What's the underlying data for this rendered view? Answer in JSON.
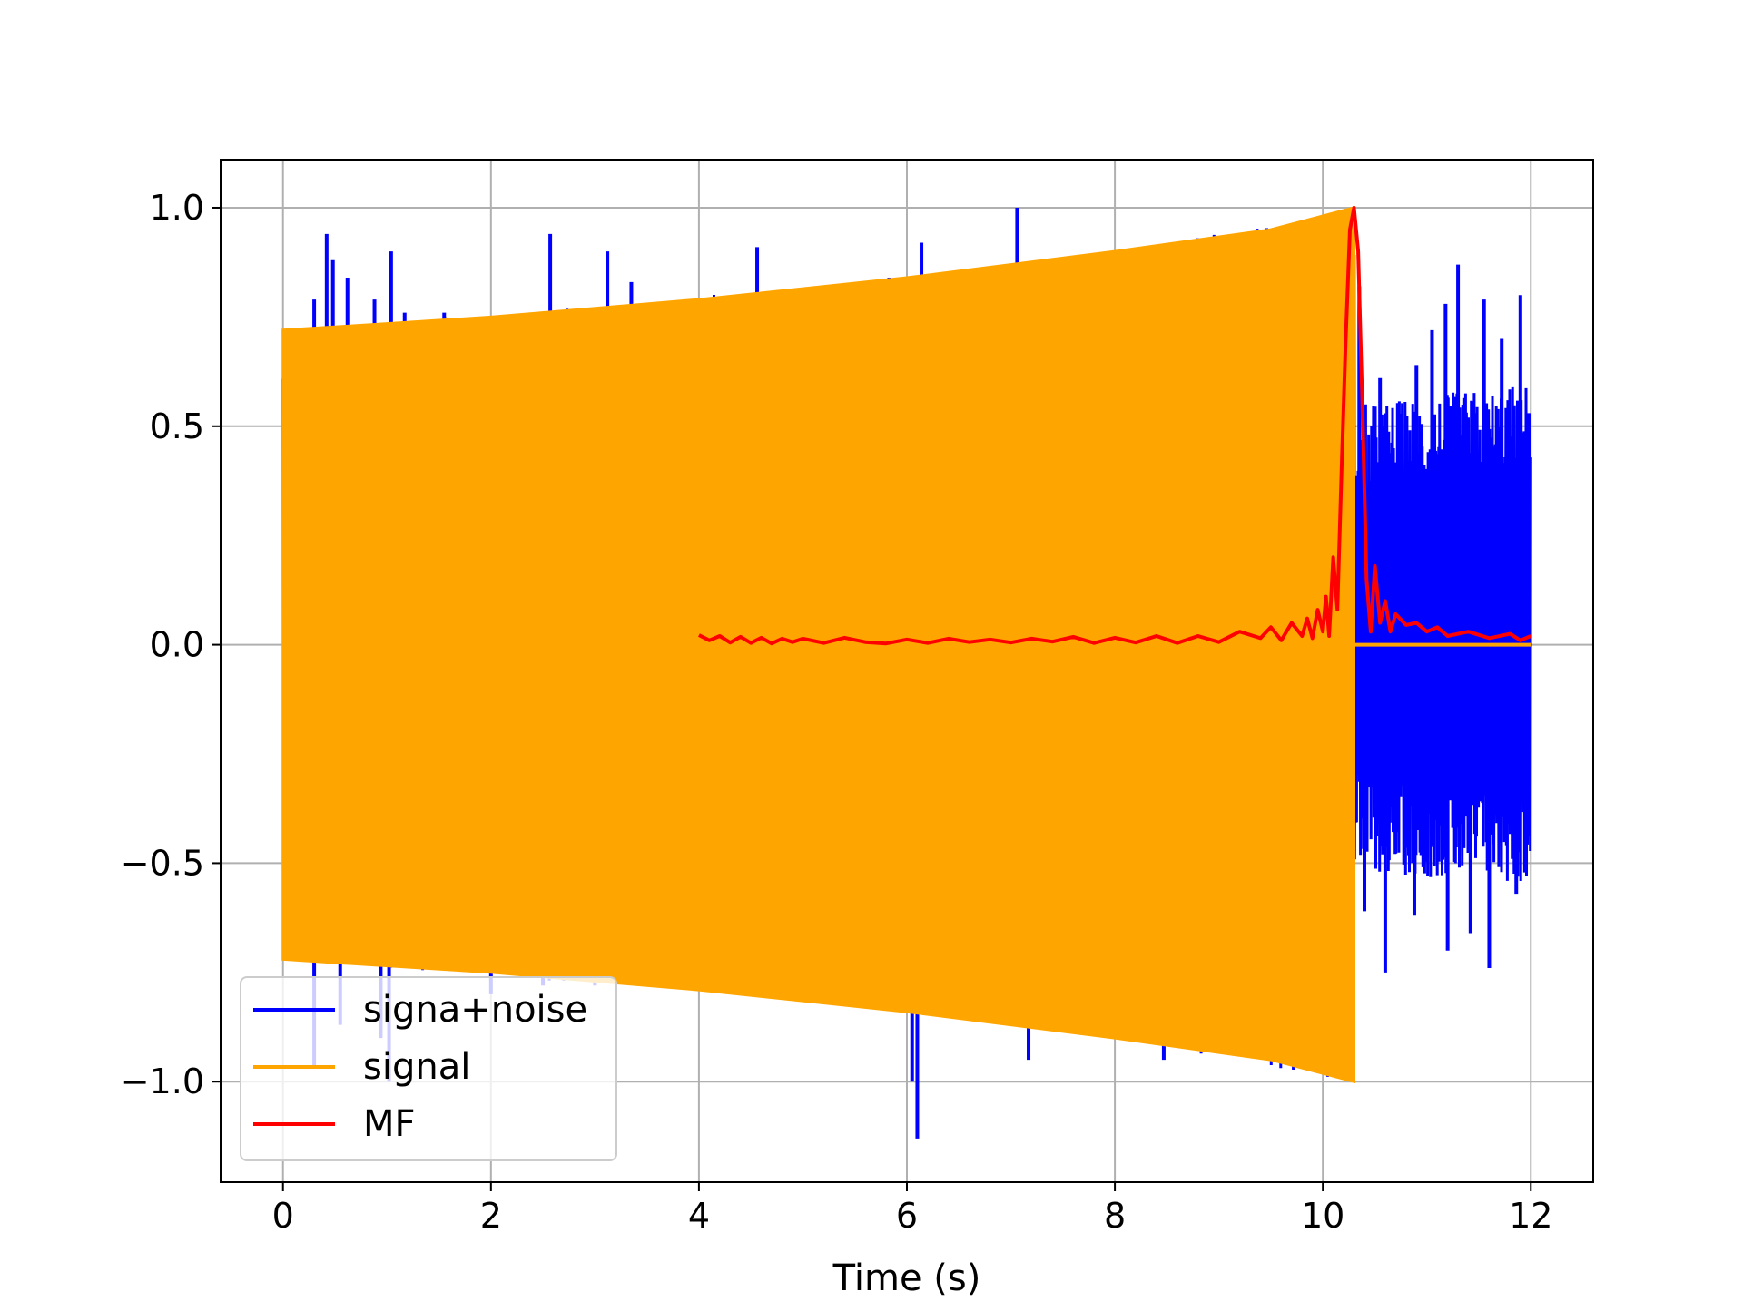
{
  "chart_data": {
    "type": "line",
    "title": "",
    "xlabel": "Time (s)",
    "ylabel": "",
    "xlim": [
      -0.6,
      12.6
    ],
    "ylim": [
      -1.23,
      1.11
    ],
    "grid": true,
    "legend_position": "lower-left",
    "x_ticks": [
      {
        "value": 0,
        "label": "0"
      },
      {
        "value": 2,
        "label": "2"
      },
      {
        "value": 4,
        "label": "4"
      },
      {
        "value": 6,
        "label": "6"
      },
      {
        "value": 8,
        "label": "8"
      },
      {
        "value": 10,
        "label": "10"
      },
      {
        "value": 12,
        "label": "12"
      }
    ],
    "y_ticks": [
      {
        "value": -1.0,
        "label": "−1.0"
      },
      {
        "value": -0.5,
        "label": "−0.5"
      },
      {
        "value": 0.0,
        "label": "0.0"
      },
      {
        "value": 0.5,
        "label": "0.5"
      },
      {
        "value": 1.0,
        "label": "1.0"
      }
    ],
    "series": [
      {
        "name": "signa+noise",
        "color": "#0000ff",
        "kind": "oscillating-band",
        "x_range": [
          0,
          12
        ],
        "envelope_upper": [
          [
            0,
            0.72
          ],
          [
            0.35,
            0.73
          ],
          [
            2.6,
            0.77
          ],
          [
            5.0,
            0.82
          ],
          [
            7.5,
            0.88
          ],
          [
            10.3,
            1.0
          ],
          [
            10.31,
            0.55
          ],
          [
            12,
            0.6
          ]
        ],
        "envelope_lower": [
          [
            0,
            -0.72
          ],
          [
            0.35,
            -0.73
          ],
          [
            2.6,
            -0.77
          ],
          [
            5.0,
            -0.82
          ],
          [
            7.5,
            -0.88
          ],
          [
            10.3,
            -1.0
          ],
          [
            10.31,
            -0.52
          ],
          [
            12,
            -0.55
          ]
        ],
        "peaks": [
          [
            0.42,
            0.94
          ],
          [
            0.3,
            0.79
          ],
          [
            0.48,
            0.88
          ],
          [
            0.62,
            0.84
          ],
          [
            0.88,
            0.79
          ],
          [
            1.04,
            0.9
          ],
          [
            1.17,
            0.76
          ],
          [
            1.55,
            0.76
          ],
          [
            2.57,
            0.94
          ],
          [
            3.12,
            0.9
          ],
          [
            3.35,
            0.83
          ],
          [
            4.56,
            0.91
          ],
          [
            5.83,
            0.84
          ],
          [
            6.14,
            0.92
          ],
          [
            7.06,
            1.0
          ],
          [
            7.12,
            0.87
          ],
          [
            10.35,
            0.82
          ],
          [
            10.55,
            0.61
          ],
          [
            10.75,
            0.44
          ],
          [
            10.9,
            0.64
          ],
          [
            11.05,
            0.72
          ],
          [
            11.18,
            0.78
          ],
          [
            11.3,
            0.87
          ],
          [
            11.55,
            0.79
          ],
          [
            11.72,
            0.7
          ],
          [
            11.9,
            0.8
          ],
          [
            11.98,
            0.53
          ],
          [
            0.3,
            -0.97
          ],
          [
            0.55,
            -0.87
          ],
          [
            0.94,
            -0.9
          ],
          [
            1.02,
            -1.0
          ],
          [
            2.0,
            -0.8
          ],
          [
            2.5,
            -0.78
          ],
          [
            3.0,
            -0.78
          ],
          [
            4.06,
            -0.79
          ],
          [
            6.05,
            -1.0
          ],
          [
            6.1,
            -1.13
          ],
          [
            7.17,
            -0.95
          ],
          [
            8.47,
            -0.95
          ],
          [
            10.4,
            -0.61
          ],
          [
            10.6,
            -0.75
          ],
          [
            10.88,
            -0.62
          ],
          [
            11.2,
            -0.7
          ],
          [
            11.42,
            -0.66
          ],
          [
            11.6,
            -0.74
          ],
          [
            11.86,
            -0.57
          ]
        ]
      },
      {
        "name": "signal",
        "color": "#ffa500",
        "kind": "oscillating-band",
        "x_range": [
          0,
          12
        ],
        "envelope_upper": [
          [
            0,
            0.72
          ],
          [
            2.0,
            0.75
          ],
          [
            4.0,
            0.79
          ],
          [
            6.0,
            0.84
          ],
          [
            8.0,
            0.9
          ],
          [
            9.5,
            0.95
          ],
          [
            10.3,
            1.0
          ]
        ],
        "envelope_lower": [
          [
            0,
            -0.72
          ],
          [
            2.0,
            -0.75
          ],
          [
            4.0,
            -0.79
          ],
          [
            6.0,
            -0.84
          ],
          [
            8.0,
            -0.9
          ],
          [
            9.5,
            -0.95
          ],
          [
            10.3,
            -1.0
          ]
        ],
        "zero_after": [
          10.3,
          12
        ]
      },
      {
        "name": "MF",
        "color": "#ff0000",
        "kind": "line",
        "x": [
          4.0,
          4.1,
          4.2,
          4.3,
          4.4,
          4.5,
          4.6,
          4.7,
          4.8,
          4.9,
          5.0,
          5.2,
          5.4,
          5.6,
          5.8,
          6.0,
          6.2,
          6.4,
          6.6,
          6.8,
          7.0,
          7.2,
          7.4,
          7.6,
          7.8,
          8.0,
          8.2,
          8.4,
          8.6,
          8.8,
          9.0,
          9.2,
          9.4,
          9.5,
          9.6,
          9.7,
          9.8,
          9.85,
          9.9,
          9.95,
          10.0,
          10.03,
          10.06,
          10.1,
          10.14,
          10.18,
          10.22,
          10.26,
          10.3,
          10.34,
          10.38,
          10.42,
          10.46,
          10.5,
          10.55,
          10.6,
          10.65,
          10.7,
          10.8,
          10.9,
          11.0,
          11.1,
          11.2,
          11.4,
          11.6,
          11.8,
          11.9,
          12.0
        ],
        "y": [
          0.022,
          0.01,
          0.02,
          0.005,
          0.018,
          0.004,
          0.016,
          0.003,
          0.014,
          0.006,
          0.014,
          0.004,
          0.016,
          0.006,
          0.003,
          0.012,
          0.004,
          0.014,
          0.006,
          0.012,
          0.005,
          0.014,
          0.007,
          0.018,
          0.004,
          0.016,
          0.005,
          0.02,
          0.004,
          0.02,
          0.006,
          0.03,
          0.015,
          0.04,
          0.01,
          0.05,
          0.02,
          0.06,
          0.015,
          0.08,
          0.03,
          0.11,
          0.02,
          0.2,
          0.08,
          0.4,
          0.7,
          0.95,
          1.0,
          0.9,
          0.55,
          0.15,
          0.03,
          0.18,
          0.05,
          0.1,
          0.03,
          0.07,
          0.045,
          0.05,
          0.03,
          0.04,
          0.02,
          0.03,
          0.015,
          0.025,
          0.01,
          0.02
        ]
      }
    ]
  },
  "legend": {
    "items": [
      {
        "label": "signa+noise",
        "color": "#0000ff"
      },
      {
        "label": "signal",
        "color": "#ffa500"
      },
      {
        "label": "MF",
        "color": "#ff0000"
      }
    ]
  }
}
